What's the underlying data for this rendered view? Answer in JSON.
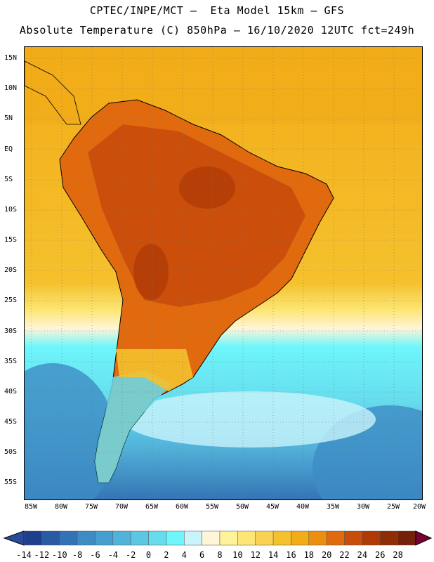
{
  "title_line1": "CPTEC/INPE/MCT –  Eta Model 15km – GFS",
  "title_line2": "Absolute Temperature (C) 850hPa – 16/10/2020 12UTC fct=249h",
  "lat_labels": [
    "15N",
    "10N",
    "5N",
    "EQ",
    "5S",
    "10S",
    "15S",
    "20S",
    "25S",
    "30S",
    "35S",
    "40S",
    "45S",
    "50S",
    "55S"
  ],
  "lon_labels": [
    "85W",
    "80W",
    "75W",
    "70W",
    "65W",
    "60W",
    "55W",
    "50W",
    "45W",
    "40W",
    "35W",
    "30W",
    "25W",
    "20W"
  ],
  "colorbar": {
    "labels": [
      "-14",
      "-12",
      "-10",
      "-8",
      "-6",
      "-4",
      "-2",
      "0",
      "2",
      "4",
      "6",
      "8",
      "10",
      "12",
      "14",
      "16",
      "18",
      "20",
      "22",
      "24",
      "26",
      "28"
    ],
    "colors": [
      "#1e3f8c",
      "#2a5aa3",
      "#3373b5",
      "#3d8cc4",
      "#479fcf",
      "#52b3da",
      "#5dc6e3",
      "#66dced",
      "#6ff6fb",
      "#c9f4fb",
      "#fff5d8",
      "#fff39a",
      "#fde675",
      "#f9d253",
      "#f5c12d",
      "#f2ac18",
      "#ec8f10",
      "#e26a0e",
      "#c94d0a",
      "#b03a06",
      "#8f2d05",
      "#74200a"
    ],
    "low_arrow": "#2a4a9a",
    "high_arrow": "#7a0030"
  }
}
